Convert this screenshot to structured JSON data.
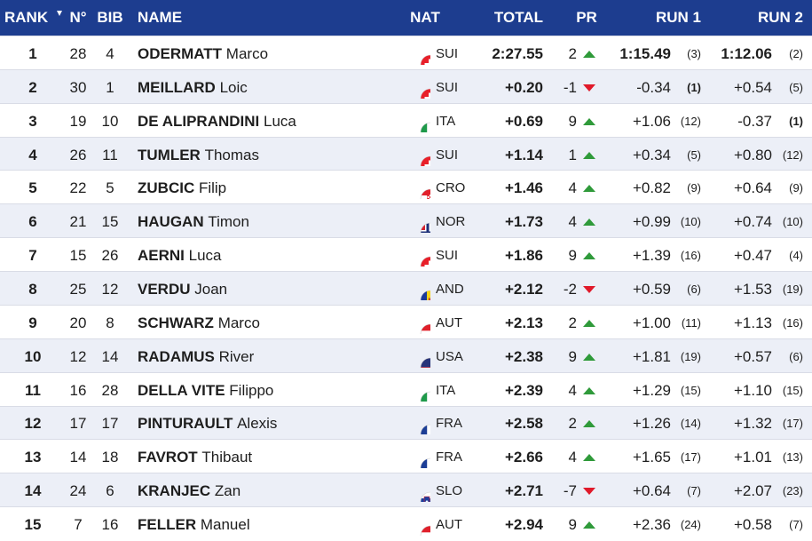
{
  "table": {
    "columns": [
      "RANK",
      "N°",
      "BIB",
      "NAME",
      "NAT",
      "TOTAL",
      "PR",
      "RUN 1",
      "RUN 2"
    ],
    "rows": [
      {
        "rank": 1,
        "no": 28,
        "bib": 4,
        "surname": "ODERMATT",
        "given": "Marco",
        "nat": "SUI",
        "total": "2:27.55",
        "pr": 2,
        "run1": "1:15.49",
        "run1_rank": "(3)",
        "run2": "1:12.06",
        "run2_rank": "(2)"
      },
      {
        "rank": 2,
        "no": 30,
        "bib": 1,
        "surname": "MEILLARD",
        "given": "Loic",
        "nat": "SUI",
        "total": "+0.20",
        "pr": -1,
        "run1": "-0.34",
        "run1_rank": "(1)",
        "run2": "+0.54",
        "run2_rank": "(5)"
      },
      {
        "rank": 3,
        "no": 19,
        "bib": 10,
        "surname": "DE ALIPRANDINI",
        "given": "Luca",
        "nat": "ITA",
        "total": "+0.69",
        "pr": 9,
        "run1": "+1.06",
        "run1_rank": "(12)",
        "run2": "-0.37",
        "run2_rank": "(1)"
      },
      {
        "rank": 4,
        "no": 26,
        "bib": 11,
        "surname": "TUMLER",
        "given": "Thomas",
        "nat": "SUI",
        "total": "+1.14",
        "pr": 1,
        "run1": "+0.34",
        "run1_rank": "(5)",
        "run2": "+0.80",
        "run2_rank": "(12)"
      },
      {
        "rank": 5,
        "no": 22,
        "bib": 5,
        "surname": "ZUBCIC",
        "given": "Filip",
        "nat": "CRO",
        "total": "+1.46",
        "pr": 4,
        "run1": "+0.82",
        "run1_rank": "(9)",
        "run2": "+0.64",
        "run2_rank": "(9)"
      },
      {
        "rank": 6,
        "no": 21,
        "bib": 15,
        "surname": "HAUGAN",
        "given": "Timon",
        "nat": "NOR",
        "total": "+1.73",
        "pr": 4,
        "run1": "+0.99",
        "run1_rank": "(10)",
        "run2": "+0.74",
        "run2_rank": "(10)"
      },
      {
        "rank": 7,
        "no": 15,
        "bib": 26,
        "surname": "AERNI",
        "given": "Luca",
        "nat": "SUI",
        "total": "+1.86",
        "pr": 9,
        "run1": "+1.39",
        "run1_rank": "(16)",
        "run2": "+0.47",
        "run2_rank": "(4)"
      },
      {
        "rank": 8,
        "no": 25,
        "bib": 12,
        "surname": "VERDU",
        "given": "Joan",
        "nat": "AND",
        "total": "+2.12",
        "pr": -2,
        "run1": "+0.59",
        "run1_rank": "(6)",
        "run2": "+1.53",
        "run2_rank": "(19)"
      },
      {
        "rank": 9,
        "no": 20,
        "bib": 8,
        "surname": "SCHWARZ",
        "given": "Marco",
        "nat": "AUT",
        "total": "+2.13",
        "pr": 2,
        "run1": "+1.00",
        "run1_rank": "(11)",
        "run2": "+1.13",
        "run2_rank": "(16)"
      },
      {
        "rank": 10,
        "no": 12,
        "bib": 14,
        "surname": "RADAMUS",
        "given": "River",
        "nat": "USA",
        "total": "+2.38",
        "pr": 9,
        "run1": "+1.81",
        "run1_rank": "(19)",
        "run2": "+0.57",
        "run2_rank": "(6)"
      },
      {
        "rank": 11,
        "no": 16,
        "bib": 28,
        "surname": "DELLA VITE",
        "given": "Filippo",
        "nat": "ITA",
        "total": "+2.39",
        "pr": 4,
        "run1": "+1.29",
        "run1_rank": "(15)",
        "run2": "+1.10",
        "run2_rank": "(15)"
      },
      {
        "rank": 12,
        "no": 17,
        "bib": 17,
        "surname": "PINTURAULT",
        "given": "Alexis",
        "nat": "FRA",
        "total": "+2.58",
        "pr": 2,
        "run1": "+1.26",
        "run1_rank": "(14)",
        "run2": "+1.32",
        "run2_rank": "(17)"
      },
      {
        "rank": 13,
        "no": 14,
        "bib": 18,
        "surname": "FAVROT",
        "given": "Thibaut",
        "nat": "FRA",
        "total": "+2.66",
        "pr": 4,
        "run1": "+1.65",
        "run1_rank": "(17)",
        "run2": "+1.01",
        "run2_rank": "(13)"
      },
      {
        "rank": 14,
        "no": 24,
        "bib": 6,
        "surname": "KRANJEC",
        "given": "Zan",
        "nat": "SLO",
        "total": "+2.71",
        "pr": -7,
        "run1": "+0.64",
        "run1_rank": "(7)",
        "run2": "+2.07",
        "run2_rank": "(23)"
      },
      {
        "rank": 15,
        "no": 7,
        "bib": 16,
        "surname": "FELLER",
        "given": "Manuel",
        "nat": "AUT",
        "total": "+2.94",
        "pr": 9,
        "run1": "+2.36",
        "run1_rank": "(24)",
        "run2": "+0.58",
        "run2_rank": "(7)"
      }
    ]
  }
}
